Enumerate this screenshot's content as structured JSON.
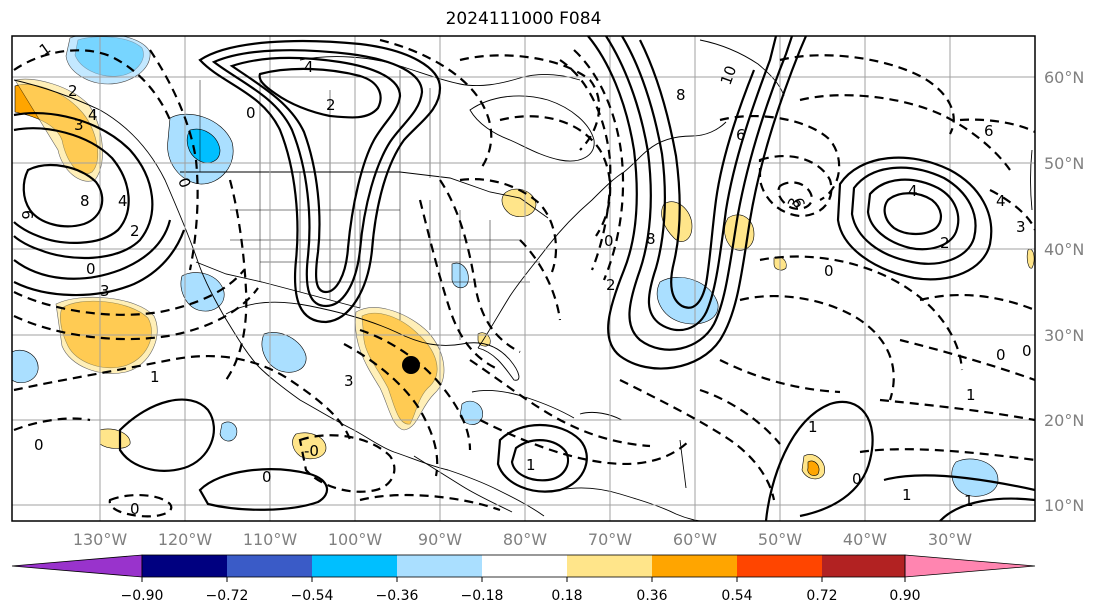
{
  "title": "2024111000 F084",
  "map": {
    "latitude_labels": [
      "60°N",
      "50°N",
      "40°N",
      "30°N",
      "20°N",
      "10°N"
    ],
    "longitude_labels": [
      "130°W",
      "120°W",
      "110°W",
      "100°W",
      "90°W",
      "80°W",
      "70°W",
      "60°W",
      "50°W",
      "40°W",
      "30°W"
    ],
    "contour_labels": [
      "1",
      "2",
      "3",
      "4",
      "0",
      "6",
      "8",
      "4",
      "2",
      "0",
      "3",
      "1",
      "0",
      "-0",
      "0",
      "1",
      "0",
      "10",
      "8",
      "6",
      "4",
      "2",
      "0",
      "8",
      "6",
      "4",
      "3",
      "2",
      "0",
      "3",
      "0",
      "1",
      "0",
      "1",
      "1",
      "6",
      "4",
      "3",
      "2",
      "0",
      "0",
      "1"
    ],
    "marker": "storm-center"
  },
  "colorbar": {
    "ticks": [
      "−0.90",
      "−0.72",
      "−0.54",
      "−0.36",
      "−0.18",
      "0.18",
      "0.36",
      "0.54",
      "0.72",
      "0.90"
    ],
    "colors": {
      "under": "#9933cc",
      "bins": [
        "#000080",
        "#3a5bc7",
        "#00bfff",
        "#aadfff",
        "#ffffff",
        "#ffe58a",
        "#ffa500",
        "#ff4500",
        "#b22222"
      ],
      "over": "#ff85b0"
    }
  }
}
